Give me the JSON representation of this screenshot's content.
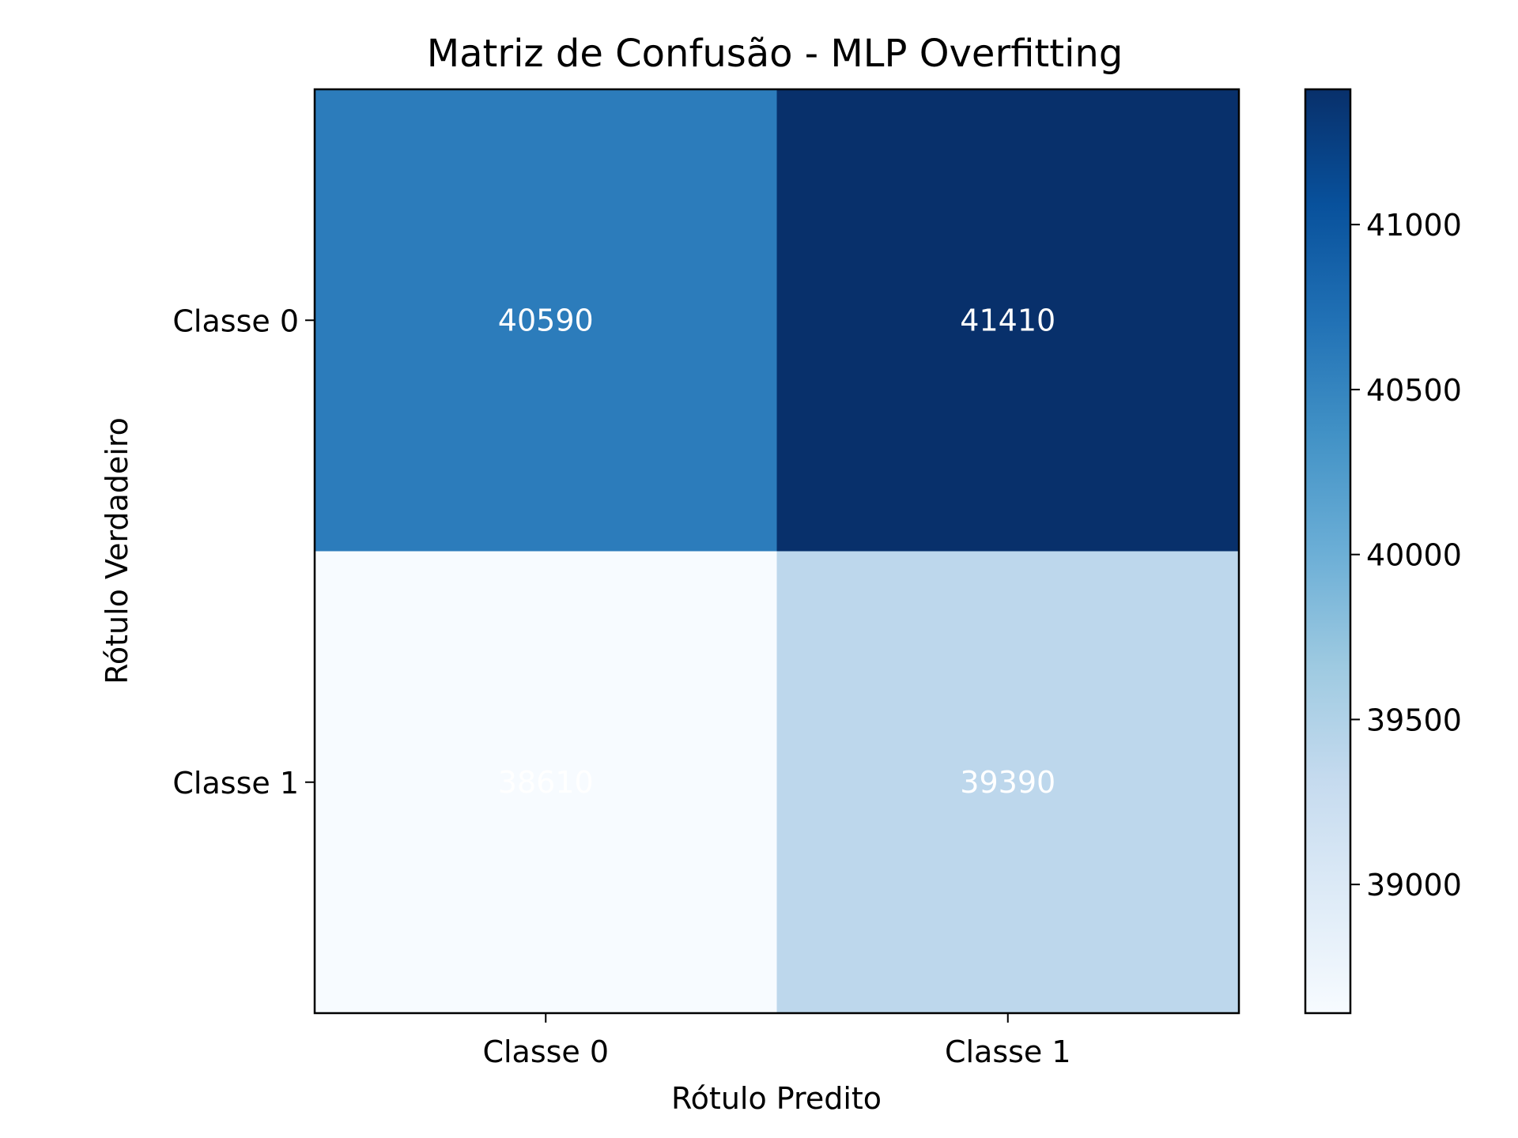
{
  "chart_data": {
    "type": "heatmap",
    "title": "Matriz de Confusão - MLP Overfitting",
    "xlabel": "Rótulo Predito",
    "ylabel": "Rótulo Verdadeiro",
    "x_categories": [
      "Classe 0",
      "Classe 1"
    ],
    "y_categories": [
      "Classe 0",
      "Classe 1"
    ],
    "values": [
      [
        40590,
        41410
      ],
      [
        38610,
        39390
      ]
    ],
    "colormap": "Blues",
    "cell_text_color": "#ffffff",
    "colorbar": {
      "min": 38610,
      "max": 41410,
      "ticks": [
        39000,
        39500,
        40000,
        40500,
        41000
      ]
    },
    "grid": false
  }
}
